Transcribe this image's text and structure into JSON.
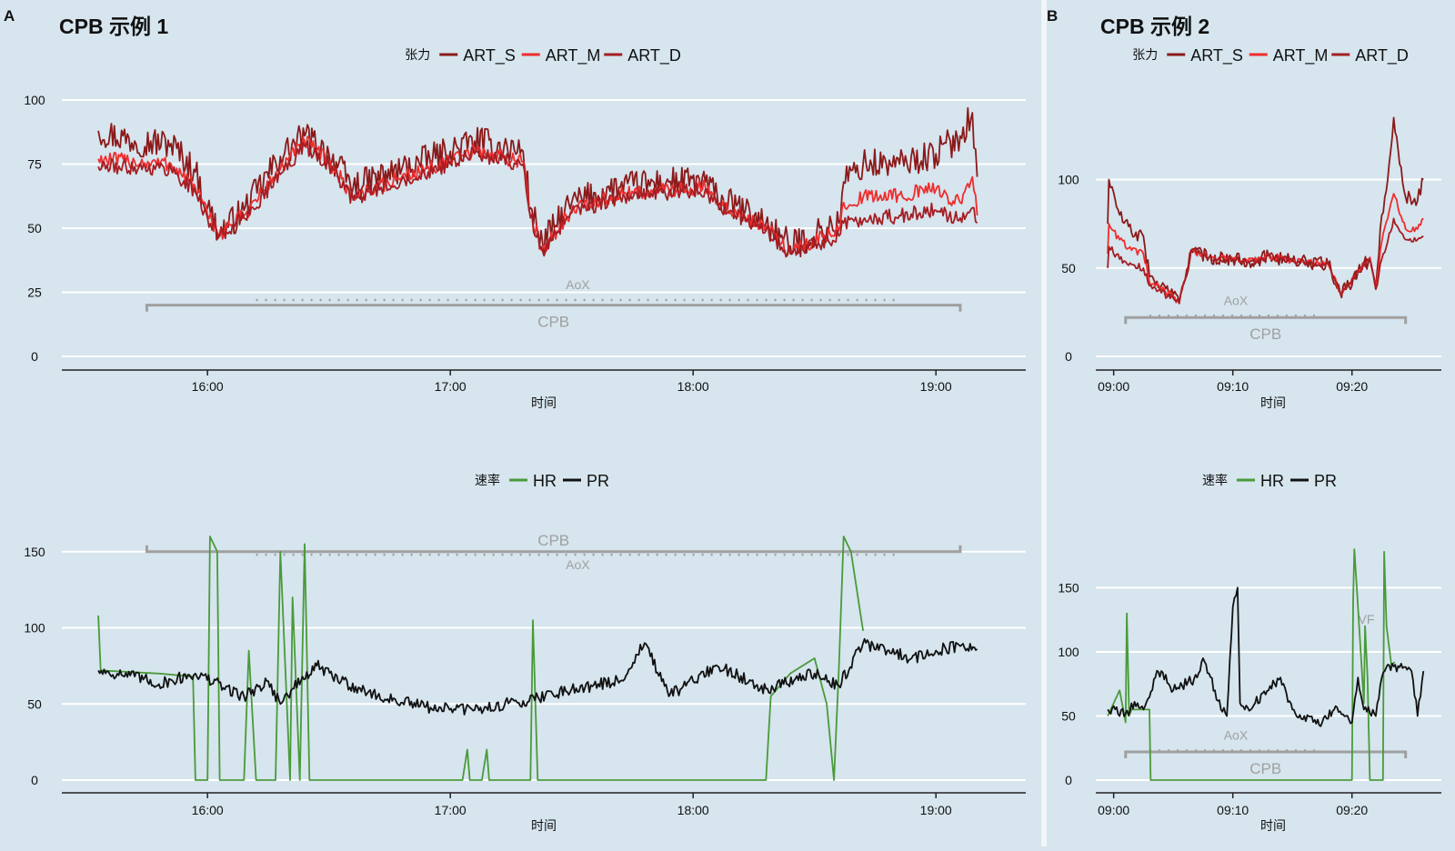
{
  "panels": [
    {
      "letter": "A",
      "title": "CPB 示例 1",
      "time_axis_label": "时间",
      "x_ticks": [
        "16:00",
        "17:00",
        "18:00",
        "19:00"
      ]
    },
    {
      "letter": "B",
      "title": "CPB 示例 2",
      "time_axis_label": "时间",
      "x_ticks": [
        "09:00",
        "09:10",
        "09:20"
      ]
    }
  ],
  "colors": {
    "ART_S": "#8b1a1a",
    "ART_M": "#ef2d2d",
    "ART_D": "#a41d22",
    "HR": "#4a9a3a",
    "PR": "#111111",
    "gridline": "#ffffff",
    "annotation": "#a0a0a0",
    "background": "#d6e5ee"
  },
  "chart_data": [
    {
      "id": "A-pressure",
      "type": "line",
      "legend_title": "张力",
      "xlabel": "时间",
      "x_unit": "hours",
      "xlim": [
        15.4,
        19.37
      ],
      "ylim": [
        0,
        100
      ],
      "yticks": [
        0,
        25,
        50,
        75,
        100
      ],
      "x_tick_values": [
        16,
        17,
        18,
        19
      ],
      "x_tick_labels": [
        "16:00",
        "17:00",
        "18:00",
        "19:00"
      ],
      "grid": true,
      "legend_position": "top",
      "annotations": [
        {
          "type": "bracket",
          "label": "CPB",
          "x": [
            15.75,
            19.1
          ],
          "y": 20,
          "label_position": "below"
        },
        {
          "type": "dotted",
          "label": "AoX",
          "x": [
            16.2,
            18.85
          ],
          "y": 22,
          "label_position": "above"
        }
      ],
      "series": [
        {
          "name": "ART_S",
          "color_key": "ART_S",
          "noise": 6,
          "x": [
            15.55,
            15.7,
            15.85,
            15.95,
            16.0,
            16.05,
            16.15,
            16.3,
            16.4,
            16.5,
            16.6,
            16.8,
            17.0,
            17.1,
            17.3,
            17.33,
            17.38,
            17.5,
            17.7,
            17.9,
            18.05,
            18.1,
            18.3,
            18.4,
            18.6,
            18.62,
            18.7,
            18.85,
            19.0,
            19.1,
            19.15,
            19.17
          ],
          "y": [
            88,
            84,
            83,
            72,
            58,
            48,
            57,
            78,
            86,
            79,
            66,
            73,
            80,
            84,
            80,
            58,
            44,
            60,
            66,
            68,
            68,
            62,
            52,
            43,
            52,
            68,
            75,
            75,
            79,
            86,
            95,
            70
          ]
        },
        {
          "name": "ART_M",
          "color_key": "ART_M",
          "noise": 3,
          "x": [
            15.55,
            15.7,
            15.85,
            15.95,
            16.0,
            16.05,
            16.15,
            16.3,
            16.4,
            16.5,
            16.6,
            16.8,
            17.0,
            17.1,
            17.3,
            17.33,
            17.38,
            17.5,
            17.7,
            17.9,
            18.05,
            18.1,
            18.3,
            18.4,
            18.6,
            18.62,
            18.7,
            18.85,
            19.0,
            19.1,
            19.15,
            19.17
          ],
          "y": [
            77,
            76,
            75,
            66,
            55,
            48,
            55,
            73,
            84,
            76,
            62,
            70,
            76,
            80,
            76,
            55,
            42,
            57,
            63,
            65,
            66,
            60,
            50,
            41,
            49,
            60,
            62,
            63,
            65,
            60,
            70,
            55
          ]
        },
        {
          "name": "ART_D",
          "color_key": "ART_D",
          "noise": 3,
          "x": [
            15.55,
            15.7,
            15.85,
            15.95,
            16.0,
            16.05,
            16.15,
            16.3,
            16.4,
            16.5,
            16.6,
            16.8,
            17.0,
            17.1,
            17.3,
            17.33,
            17.38,
            17.5,
            17.7,
            17.9,
            18.05,
            18.1,
            18.3,
            18.4,
            18.6,
            18.62,
            18.7,
            18.85,
            19.0,
            19.1,
            19.15,
            19.17
          ],
          "y": [
            74,
            74,
            73,
            64,
            54,
            47,
            54,
            71,
            82,
            75,
            61,
            69,
            75,
            79,
            75,
            54,
            41,
            56,
            62,
            64,
            65,
            59,
            49,
            40,
            47,
            52,
            53,
            55,
            57,
            54,
            58,
            52
          ]
        }
      ]
    },
    {
      "id": "A-rate",
      "type": "line",
      "legend_title": "速率",
      "xlabel": "时间",
      "x_unit": "hours",
      "xlim": [
        15.4,
        19.37
      ],
      "ylim": [
        0,
        160
      ],
      "yticks": [
        0,
        50,
        100,
        150
      ],
      "x_tick_values": [
        16,
        17,
        18,
        19
      ],
      "x_tick_labels": [
        "16:00",
        "17:00",
        "18:00",
        "19:00"
      ],
      "grid": true,
      "legend_position": "top",
      "annotations": [
        {
          "type": "bracket",
          "label": "CPB",
          "x": [
            15.75,
            19.1
          ],
          "y": 150,
          "label_position": "above"
        },
        {
          "type": "dotted",
          "label": "AoX",
          "x": [
            16.2,
            18.85
          ],
          "y": 148,
          "label_position": "below"
        }
      ],
      "series": [
        {
          "name": "HR",
          "color_key": "HR",
          "noise": 0,
          "x": [
            15.55,
            15.56,
            15.8,
            15.94,
            15.95,
            16.0,
            16.01,
            16.04,
            16.05,
            16.15,
            16.17,
            16.2,
            16.28,
            16.3,
            16.34,
            16.35,
            16.38,
            16.4,
            16.42,
            17.05,
            17.07,
            17.08,
            17.13,
            17.15,
            17.16,
            17.33,
            17.34,
            17.36,
            17.4,
            18.3,
            18.32,
            18.4,
            18.5,
            18.55,
            18.58,
            18.6,
            18.62,
            18.65,
            18.7
          ],
          "y": [
            108,
            72,
            70,
            68,
            0,
            0,
            160,
            150,
            0,
            0,
            85,
            0,
            0,
            150,
            0,
            120,
            0,
            155,
            0,
            0,
            20,
            0,
            0,
            20,
            0,
            0,
            105,
            0,
            0,
            0,
            55,
            70,
            80,
            50,
            0,
            72,
            160,
            150,
            98
          ]
        },
        {
          "name": "PR",
          "color_key": "PR",
          "noise": 4,
          "x": [
            15.55,
            15.7,
            15.8,
            15.95,
            16.15,
            16.25,
            16.3,
            16.35,
            16.45,
            16.55,
            16.7,
            16.9,
            17.1,
            17.3,
            17.5,
            17.7,
            17.8,
            17.9,
            18.0,
            18.1,
            18.3,
            18.5,
            18.6,
            18.7,
            18.8,
            18.9,
            19.0,
            19.1,
            19.17
          ],
          "y": [
            72,
            68,
            63,
            70,
            55,
            65,
            50,
            60,
            75,
            65,
            55,
            48,
            46,
            52,
            60,
            65,
            90,
            55,
            65,
            75,
            60,
            70,
            62,
            90,
            85,
            80,
            85,
            88,
            86
          ]
        }
      ]
    },
    {
      "id": "B-pressure",
      "type": "line",
      "legend_title": "张力",
      "xlabel": "时间",
      "x_unit": "minutes",
      "xlim": [
        -1.5,
        27.5
      ],
      "ylim": [
        0,
        145
      ],
      "yticks": [
        0,
        50,
        100
      ],
      "x_tick_values": [
        0,
        10,
        20
      ],
      "x_tick_labels": [
        "09:00",
        "09:10",
        "09:20"
      ],
      "grid": true,
      "legend_position": "top",
      "annotations": [
        {
          "type": "bracket",
          "label": "CPB",
          "x": [
            1.0,
            24.5
          ],
          "y": 22,
          "label_position": "below"
        },
        {
          "type": "dotted",
          "label": "AoX",
          "x": [
            3.0,
            17.5
          ],
          "y": 23,
          "label_position": "above"
        }
      ],
      "series": [
        {
          "name": "ART_S",
          "color_key": "ART_S",
          "noise": 4,
          "x": [
            -0.5,
            -0.4,
            0.5,
            1.5,
            2.5,
            3.0,
            4.0,
            5.0,
            5.5,
            6.5,
            8.0,
            10.0,
            12.0,
            13.0,
            15.0,
            18.0,
            19.0,
            19.5,
            20.5,
            21.5,
            22.0,
            22.5,
            23.0,
            23.5,
            24.5,
            25.5,
            26.0
          ],
          "y": [
            75,
            100,
            80,
            70,
            68,
            45,
            40,
            35,
            30,
            60,
            56,
            55,
            54,
            57,
            54,
            52,
            36,
            38,
            48,
            55,
            38,
            80,
            100,
            135,
            90,
            88,
            100
          ]
        },
        {
          "name": "ART_M",
          "color_key": "ART_M",
          "noise": 2,
          "x": [
            -0.5,
            -0.4,
            0.5,
            1.5,
            2.5,
            3.0,
            4.0,
            5.0,
            5.5,
            6.5,
            8.0,
            10.0,
            12.0,
            13.0,
            15.0,
            18.0,
            19.0,
            19.5,
            20.5,
            21.5,
            22.0,
            22.5,
            23.0,
            23.5,
            24.5,
            25.5,
            26.0
          ],
          "y": [
            58,
            75,
            66,
            60,
            58,
            42,
            38,
            34,
            30,
            60,
            56,
            55,
            54,
            57,
            54,
            52,
            36,
            38,
            48,
            56,
            38,
            65,
            78,
            92,
            72,
            72,
            78
          ]
        },
        {
          "name": "ART_D",
          "color_key": "ART_D",
          "noise": 2,
          "x": [
            -0.5,
            -0.4,
            0.5,
            1.5,
            2.5,
            3.0,
            4.0,
            5.0,
            5.5,
            6.5,
            8.0,
            10.0,
            12.0,
            13.0,
            15.0,
            18.0,
            19.0,
            19.5,
            20.5,
            21.5,
            22.0,
            22.5,
            23.0,
            23.5,
            24.5,
            25.5,
            26.0
          ],
          "y": [
            50,
            62,
            55,
            52,
            50,
            40,
            36,
            33,
            30,
            60,
            56,
            55,
            54,
            57,
            54,
            52,
            36,
            38,
            48,
            55,
            38,
            55,
            65,
            78,
            66,
            66,
            68
          ]
        }
      ]
    },
    {
      "id": "B-rate",
      "type": "line",
      "legend_title": "速率",
      "xlabel": "时间",
      "x_unit": "minutes",
      "xlim": [
        -1.5,
        27.5
      ],
      "ylim": [
        0,
        190
      ],
      "yticks": [
        0,
        50,
        100,
        150
      ],
      "x_tick_values": [
        0,
        10,
        20
      ],
      "x_tick_labels": [
        "09:00",
        "09:10",
        "09:20"
      ],
      "grid": true,
      "legend_position": "top",
      "annotations": [
        {
          "type": "bracket",
          "label": "CPB",
          "x": [
            1.0,
            24.5
          ],
          "y": 22,
          "label_position": "below"
        },
        {
          "type": "dotted",
          "label": "AoX",
          "x": [
            3.0,
            17.5
          ],
          "y": 23,
          "label_position": "above"
        },
        {
          "type": "text",
          "label": "VF",
          "x": 21.2,
          "y": 122
        }
      ],
      "series": [
        {
          "name": "HR",
          "color_key": "HR",
          "noise": 0,
          "x": [
            -0.5,
            0.5,
            1.0,
            1.1,
            1.3,
            1.5,
            3.0,
            3.1,
            20.0,
            20.1,
            20.2,
            20.4,
            21.0,
            21.1,
            21.3,
            21.5,
            22.6,
            22.7,
            22.9,
            23.3,
            23.6
          ],
          "y": [
            50,
            70,
            45,
            130,
            50,
            55,
            55,
            0,
            0,
            140,
            180,
            150,
            60,
            120,
            80,
            0,
            0,
            178,
            120,
            90,
            92
          ]
        },
        {
          "name": "PR",
          "color_key": "PR",
          "noise": 4,
          "x": [
            -0.5,
            1.0,
            2.0,
            2.5,
            3.5,
            4.0,
            5.0,
            7.0,
            7.5,
            8.5,
            9.0,
            9.5,
            10.0,
            10.4,
            10.6,
            11.0,
            13.0,
            14.0,
            15.0,
            16.0,
            17.5,
            18.5,
            19.5,
            20.0,
            20.5,
            21.0,
            22.0,
            22.5,
            23.0,
            24.0,
            25.0,
            25.5,
            26.0
          ],
          "y": [
            55,
            52,
            60,
            55,
            80,
            85,
            70,
            80,
            95,
            70,
            55,
            50,
            135,
            150,
            60,
            55,
            70,
            80,
            55,
            50,
            45,
            55,
            50,
            45,
            80,
            55,
            50,
            80,
            90,
            88,
            85,
            50,
            85
          ]
        }
      ]
    }
  ]
}
